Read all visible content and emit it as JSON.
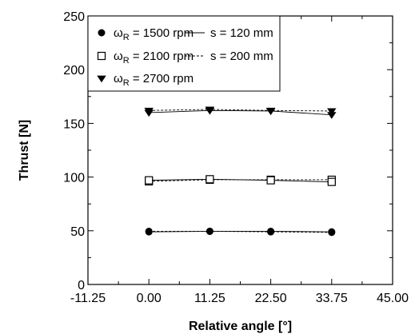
{
  "chart_data": {
    "type": "scatter",
    "xlabel": "Relative angle [°]",
    "ylabel": "Thrust [N]",
    "xlim": [
      -11.25,
      45.0
    ],
    "ylim": [
      0,
      250
    ],
    "xticks": [
      "-11.25",
      "0.00",
      "11.25",
      "22.50",
      "33.75",
      "45.00"
    ],
    "yticks": [
      "0",
      "50",
      "100",
      "150",
      "200",
      "250"
    ],
    "x": [
      0.0,
      11.25,
      22.5,
      33.75
    ],
    "grid": false,
    "legend_position": "top-left",
    "legend": {
      "markers": [
        {
          "base": "ω",
          "sub": "R",
          "rest": " = 1500 rpm",
          "marker": "filled-circle"
        },
        {
          "base": "ω",
          "sub": "R",
          "rest": " = 2100 rpm",
          "marker": "open-square"
        },
        {
          "base": "ω",
          "sub": "R",
          "rest": " = 2700 rpm",
          "marker": "filled-triangle-down"
        }
      ],
      "lines": [
        {
          "label": "s = 120 mm",
          "style": "solid"
        },
        {
          "label": "s = 200 mm",
          "style": "dashed"
        }
      ]
    },
    "series": [
      {
        "speed": "1500 rpm",
        "spacing": "120 mm",
        "marker": "filled-circle",
        "line": "solid",
        "values": [
          49,
          49.5,
          49.5,
          49
        ]
      },
      {
        "speed": "1500 rpm",
        "spacing": "200 mm",
        "marker": "filled-circle",
        "line": "dashed",
        "values": [
          49.5,
          49.5,
          49,
          48.5
        ]
      },
      {
        "speed": "2100 rpm",
        "spacing": "120 mm",
        "marker": "open-square",
        "line": "solid",
        "values": [
          97,
          98,
          97,
          95.5
        ]
      },
      {
        "speed": "2100 rpm",
        "spacing": "200 mm",
        "marker": "open-square",
        "line": "dashed",
        "values": [
          96,
          97.5,
          97.5,
          97.5
        ]
      },
      {
        "speed": "2700 rpm",
        "spacing": "120 mm",
        "marker": "filled-triangle-down",
        "line": "solid",
        "values": [
          160,
          162,
          161.5,
          158
        ]
      },
      {
        "speed": "2700 rpm",
        "spacing": "200 mm",
        "marker": "filled-triangle-down",
        "line": "dashed",
        "values": [
          162,
          163,
          162,
          161.5
        ]
      }
    ]
  }
}
